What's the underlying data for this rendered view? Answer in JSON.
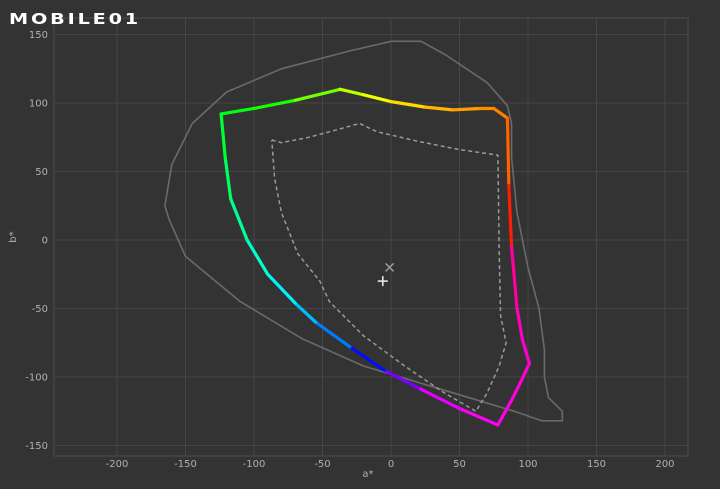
{
  "logo": {
    "text": "MOBILE01"
  },
  "chart_data": {
    "type": "line",
    "title": "",
    "xlabel": "a*",
    "ylabel": "b*",
    "xlim": [
      -250,
      215
    ],
    "ylim": [
      -155,
      155
    ],
    "xticks": [
      -200,
      -150,
      -100,
      -50,
      0,
      50,
      100,
      150,
      200
    ],
    "yticks": [
      -150,
      -100,
      -50,
      0,
      50,
      100,
      150
    ],
    "grid": true,
    "colors": {
      "background": "#333333",
      "grid": "#464646",
      "frame": "#4e4e4e",
      "tick_text": "#b0b0b0",
      "visible_boundary": "#6a6a6a",
      "reference_gamut": "#9a9a9a",
      "marker_white": "#e6e6e6",
      "marker_target": "#a0a0a0"
    },
    "series": [
      {
        "style": "thin-solid-gray",
        "points": [
          [
            -150,
            -12
          ],
          [
            -110,
            -45
          ],
          [
            -65,
            -72
          ],
          [
            -20,
            -92
          ],
          [
            40,
            -110
          ],
          [
            90,
            -125
          ],
          [
            110,
            -132
          ],
          [
            125,
            -132
          ],
          [
            125,
            -125
          ],
          [
            115,
            -115
          ],
          [
            112,
            -100
          ],
          [
            112,
            -80
          ],
          [
            108,
            -50
          ],
          [
            100,
            -20
          ],
          [
            92,
            20
          ],
          [
            88,
            60
          ],
          [
            88,
            85
          ],
          [
            85,
            98
          ],
          [
            70,
            115
          ],
          [
            40,
            135
          ],
          [
            22,
            145
          ],
          [
            0,
            145
          ],
          [
            -30,
            138
          ],
          [
            -80,
            125
          ],
          [
            -120,
            108
          ],
          [
            -145,
            85
          ],
          [
            -160,
            55
          ],
          [
            -165,
            25
          ],
          [
            -162,
            15
          ],
          [
            -150,
            -12
          ]
        ]
      },
      {
        "style": "dotted-gray",
        "points": [
          [
            -87,
            73
          ],
          [
            -80,
            71
          ],
          [
            -60,
            75
          ],
          [
            -45,
            79
          ],
          [
            -23,
            85
          ],
          [
            -10,
            79
          ],
          [
            20,
            72
          ],
          [
            50,
            66
          ],
          [
            78,
            62
          ],
          [
            79,
            -10
          ],
          [
            80,
            -55
          ],
          [
            84,
            -75
          ],
          [
            79,
            -92
          ],
          [
            70,
            -112
          ],
          [
            62,
            -125
          ],
          [
            38,
            -111
          ],
          [
            10,
            -92
          ],
          [
            -20,
            -70
          ],
          [
            -45,
            -45
          ],
          [
            -52,
            -30
          ],
          [
            -68,
            -10
          ],
          [
            -80,
            20
          ],
          [
            -85,
            45
          ],
          [
            -87,
            73
          ]
        ]
      },
      {
        "style": "thick-hue",
        "points": [
          [
            -124,
            92
          ],
          [
            -100,
            96
          ],
          [
            -70,
            102
          ],
          [
            -37,
            110
          ],
          [
            -20,
            106
          ],
          [
            0,
            101
          ],
          [
            25,
            97
          ],
          [
            45,
            95
          ],
          [
            65,
            96
          ],
          [
            75,
            96
          ],
          [
            85,
            89
          ],
          [
            86,
            40
          ],
          [
            88,
            -5
          ],
          [
            92,
            -50
          ],
          [
            96,
            -73
          ],
          [
            101,
            -90
          ],
          [
            95,
            -103
          ],
          [
            88,
            -117
          ],
          [
            78,
            -135
          ],
          [
            50,
            -123
          ],
          [
            20,
            -108
          ],
          [
            -5,
            -95
          ],
          [
            -30,
            -78
          ],
          [
            -55,
            -60
          ],
          [
            -70,
            -46
          ],
          [
            -90,
            -25
          ],
          [
            -105,
            0
          ],
          [
            -117,
            30
          ],
          [
            -121,
            60
          ],
          [
            -124,
            92
          ]
        ]
      }
    ],
    "markers": [
      {
        "name": "cross-x",
        "x": -1,
        "y": -20
      },
      {
        "name": "plus",
        "x": -6,
        "y": -30
      }
    ]
  }
}
